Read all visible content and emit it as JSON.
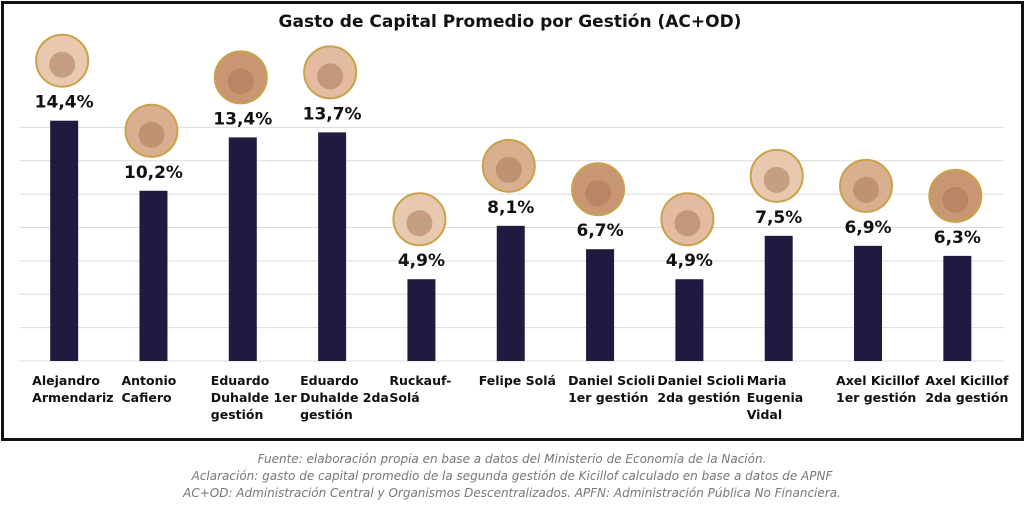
{
  "chart_data": {
    "type": "bar",
    "title": "Gasto de Capital Promedio por Gestión (AC+OD)",
    "categories": [
      "Alejandro Armendariz",
      "Antonio Cafiero",
      "Eduardo Duhalde 1er gestión",
      "Eduardo Duhalde 2da gestión",
      "Ruckauf-Solá",
      "Felipe Solá",
      "Daniel Scioli 1er gestión",
      "Daniel Scioli 2da gestión",
      "Maria Eugenia Vidal",
      "Axel Kicillof 1er gestión",
      "Axel Kicillof 2da gestión"
    ],
    "values": [
      14.4,
      10.2,
      13.4,
      13.7,
      4.9,
      8.1,
      6.7,
      4.9,
      7.5,
      6.9,
      6.3
    ],
    "value_labels": [
      "14,4%",
      "10,2%",
      "13,4%",
      "13,7%",
      "4,9%",
      "8,1%",
      "6,7%",
      "4,9%",
      "7,5%",
      "6,9%",
      "6,3%"
    ],
    "color": "#1f1b40",
    "ylim": [
      0,
      16
    ],
    "yticks": [
      0,
      2,
      4,
      6,
      8,
      10,
      12,
      14
    ],
    "grid": true,
    "notes": [
      "Fuente: elaboración propia en base a datos del Ministerio de Economía de la Nación.",
      "Aclaración: gasto de capital promedio de la segunda gestión de Kicillof calculado en base a datos de APNF",
      "AC+OD: Administración Central y Organismos Descentralizados. APFN: Administración Pública No Financiera."
    ]
  }
}
